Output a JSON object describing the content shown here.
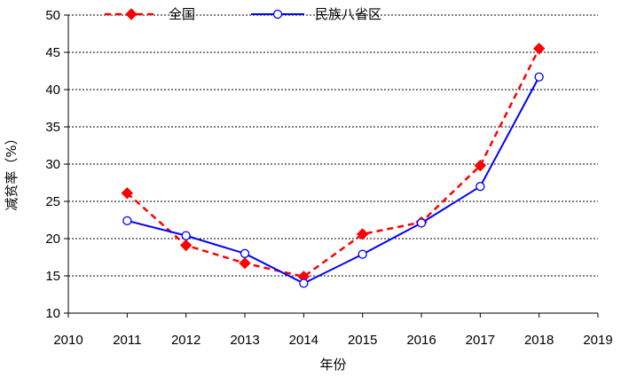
{
  "chart_data": {
    "type": "line",
    "title": "",
    "xlabel": "年份",
    "ylabel": "减贫率（%）",
    "xlim": [
      2010,
      2019
    ],
    "ylim": [
      10,
      50
    ],
    "x_ticks": [
      2010,
      2011,
      2012,
      2013,
      2014,
      2015,
      2016,
      2017,
      2018,
      2019
    ],
    "y_ticks": [
      10,
      15,
      20,
      25,
      30,
      35,
      40,
      45,
      50
    ],
    "grid": "horizontal dotted",
    "legend_position": "top",
    "series": [
      {
        "name": "全国",
        "color": "#ff0000",
        "line_style": "dashed",
        "marker": "filled-diamond",
        "points": [
          {
            "x": 2011,
            "y": 26.1
          },
          {
            "x": 2012,
            "y": 19.1
          },
          {
            "x": 2013,
            "y": 16.7
          },
          {
            "x": 2014,
            "y": 14.9
          },
          {
            "x": 2015,
            "y": 20.6
          },
          {
            "x": 2016,
            "y": 22.2
          },
          {
            "x": 2017,
            "y": 29.8
          },
          {
            "x": 2018,
            "y": 45.5
          }
        ]
      },
      {
        "name": "民族八省区",
        "color": "#0000ff",
        "line_style": "solid",
        "marker": "open-circle",
        "points": [
          {
            "x": 2011,
            "y": 22.4
          },
          {
            "x": 2012,
            "y": 20.4
          },
          {
            "x": 2013,
            "y": 18.0
          },
          {
            "x": 2014,
            "y": 14.0
          },
          {
            "x": 2015,
            "y": 17.9
          },
          {
            "x": 2016,
            "y": 22.1
          },
          {
            "x": 2017,
            "y": 27.0
          },
          {
            "x": 2018,
            "y": 41.7
          }
        ]
      }
    ]
  }
}
